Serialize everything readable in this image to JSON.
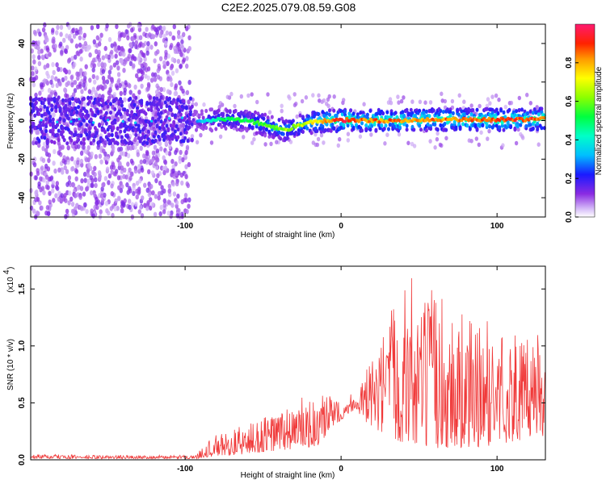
{
  "title": "C2E2.2025.079.08.59.G08",
  "colors": {
    "snr_line": "#f03a3a",
    "axis": "#000000"
  },
  "chart_data": [
    {
      "type": "heatmap",
      "xlabel": "Height of straight line (km)",
      "ylabel": "Frequency (Hz)",
      "xlim": [
        -199,
        131
      ],
      "ylim": [
        -50,
        50
      ],
      "x_ticks": [
        {
          "v": -100,
          "label": "-100"
        },
        {
          "v": 0,
          "label": "0"
        },
        {
          "v": 100,
          "label": "100"
        }
      ],
      "y_ticks": [
        {
          "v": -40,
          "label": "-40"
        },
        {
          "v": -20,
          "label": "-20"
        },
        {
          "v": 0,
          "label": "0"
        },
        {
          "v": 20,
          "label": "20"
        },
        {
          "v": 40,
          "label": "40"
        }
      ],
      "colorbar": {
        "label": "Normalized spectral amplitude",
        "range": [
          0,
          1
        ],
        "ticks": [
          {
            "v": 0.0,
            "label": "0.0"
          },
          {
            "v": 0.2,
            "label": "0.2"
          },
          {
            "v": 0.4,
            "label": "0.4"
          },
          {
            "v": 0.6,
            "label": "0.6"
          },
          {
            "v": 0.8,
            "label": "0.8"
          }
        ]
      },
      "ridge": {
        "x": [
          -199,
          -150,
          -100,
          -90,
          -80,
          -70,
          -60,
          -50,
          -40,
          -35,
          -30,
          -20,
          -10,
          0,
          5,
          10,
          20,
          40,
          60,
          80,
          100,
          120,
          131
        ],
        "freq": [
          0,
          0,
          0,
          0,
          0.5,
          1,
          0,
          -2,
          -4,
          -5,
          -3,
          -1,
          0,
          0,
          0.5,
          0,
          0,
          0,
          0.5,
          0.5,
          0.5,
          0.5,
          1
        ],
        "amplitude": [
          0.15,
          0.15,
          0.2,
          0.35,
          0.5,
          0.55,
          0.55,
          0.6,
          0.65,
          0.7,
          0.7,
          0.75,
          0.85,
          1.0,
          0.95,
          0.9,
          0.9,
          0.9,
          0.9,
          0.9,
          0.95,
          0.95,
          0.95
        ]
      }
    },
    {
      "type": "line",
      "xlabel": "Height of straight line (km)",
      "ylabel": "SNR (10 * v/v)",
      "y_scale_label": "(x10",
      "y_scale_exp": "4",
      "xlim": [
        -199,
        131
      ],
      "ylim": [
        0,
        1.7
      ],
      "x_ticks": [
        {
          "v": -100,
          "label": "-100"
        },
        {
          "v": 0,
          "label": "0"
        },
        {
          "v": 100,
          "label": "100"
        }
      ],
      "y_ticks": [
        {
          "v": 0.0,
          "label": "0.0"
        },
        {
          "v": 0.5,
          "label": "0.5"
        },
        {
          "v": 1.0,
          "label": "1.0"
        },
        {
          "v": 1.5,
          "label": "1.5"
        }
      ],
      "envelope": {
        "x": [
          -199,
          -150,
          -100,
          -92,
          -90,
          -80,
          -60,
          -40,
          -25,
          -15,
          -10,
          -5,
          0,
          5,
          10,
          15,
          20,
          25,
          30,
          40,
          45,
          50,
          60,
          70,
          80,
          90,
          100,
          110,
          120,
          125,
          131
        ],
        "low": [
          0.01,
          0.01,
          0.01,
          0.01,
          0.02,
          0.03,
          0.05,
          0.08,
          0.1,
          0.12,
          0.15,
          0.3,
          0.35,
          0.4,
          0.45,
          0.3,
          0.3,
          0.2,
          0.2,
          0.15,
          0.15,
          0.1,
          0.1,
          0.1,
          0.1,
          0.1,
          0.15,
          0.15,
          0.2,
          0.2,
          0.2
        ],
        "high": [
          0.05,
          0.04,
          0.04,
          0.05,
          0.12,
          0.22,
          0.32,
          0.45,
          0.55,
          0.5,
          0.6,
          0.55,
          0.5,
          0.6,
          0.62,
          0.75,
          0.9,
          1.0,
          1.3,
          1.6,
          1.7,
          1.35,
          1.55,
          1.4,
          1.3,
          1.2,
          1.25,
          1.15,
          1.05,
          1.4,
          1.2
        ]
      }
    }
  ]
}
